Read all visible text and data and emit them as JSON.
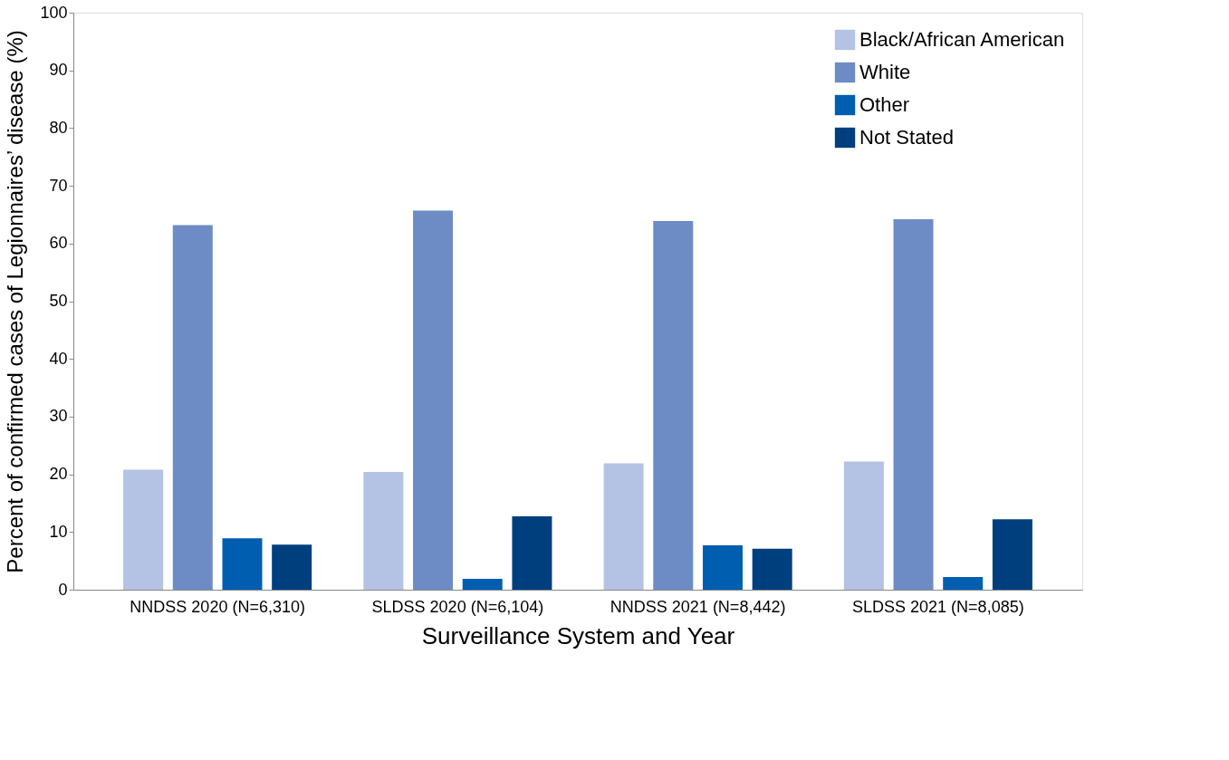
{
  "chart_data": {
    "type": "bar",
    "xlabel": "Surveillance System and Year",
    "ylabel": "Percent of confirmed cases of Legionnaires’ disease  (%)",
    "categories": [
      "NNDSS 2020 (N=6,310)",
      "SLDSS 2020 (N=6,104)",
      "NNDSS 2021 (N=8,442)",
      "SLDSS 2021 (N=8,085)"
    ],
    "series": [
      {
        "name": "Black/African American",
        "color": "#b4c2e3",
        "values": [
          20.8,
          20.4,
          21.9,
          22.2
        ]
      },
      {
        "name": "White",
        "color": "#6d8cc6",
        "values": [
          63.2,
          65.7,
          63.9,
          64.2
        ]
      },
      {
        "name": "Other",
        "color": "#005eb0",
        "values": [
          8.9,
          1.9,
          7.7,
          2.2
        ]
      },
      {
        "name": "Not Stated",
        "color": "#003f7d",
        "values": [
          7.8,
          12.7,
          7.1,
          12.2
        ]
      }
    ],
    "ylim": [
      0,
      100
    ],
    "yticks": [
      0,
      10,
      20,
      30,
      40,
      50,
      60,
      70,
      80,
      90,
      100
    ],
    "grid": false,
    "legend": "top right"
  }
}
